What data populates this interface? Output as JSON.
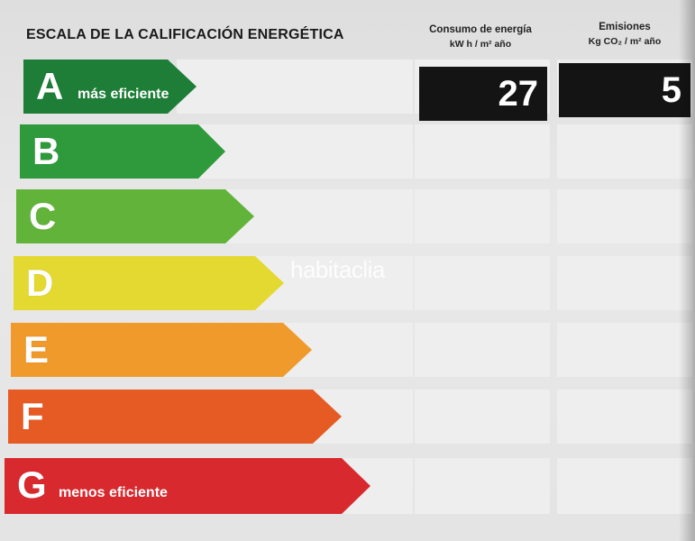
{
  "header": {
    "title": "ESCALA DE LA CALIFICACIÓN ENERGÉTICA",
    "consumo_label": "Consumo de energía",
    "consumo_unit": "kW h / m² año",
    "emisiones_label": "Emisiones",
    "emisiones_unit": "Kg CO₂ / m² año"
  },
  "scale": [
    {
      "letter": "A",
      "note": "más eficiente",
      "color": "#1e7d37"
    },
    {
      "letter": "B",
      "note": "",
      "color": "#2e9a3c"
    },
    {
      "letter": "C",
      "note": "",
      "color": "#62b33a"
    },
    {
      "letter": "D",
      "note": "",
      "color": "#e4d930"
    },
    {
      "letter": "E",
      "note": "",
      "color": "#ef9a2a"
    },
    {
      "letter": "F",
      "note": "",
      "color": "#e65a24"
    },
    {
      "letter": "G",
      "note": "menos eficiente",
      "color": "#d8292e"
    }
  ],
  "rating": {
    "consumo_value": "27",
    "emisiones_value": "5"
  },
  "watermark": "habitaclia"
}
